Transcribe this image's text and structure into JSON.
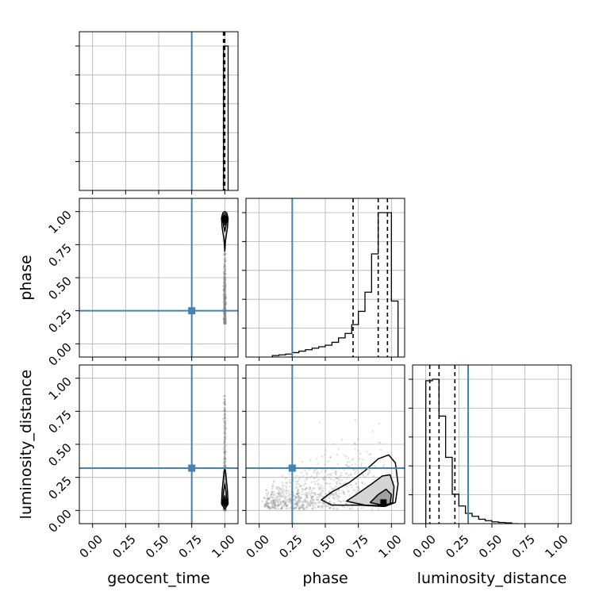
{
  "chart_data": {
    "type": "corner",
    "parameters": [
      "geocent_time",
      "phase",
      "luminosity_distance"
    ],
    "axis_labels": {
      "geocent_time": "geocent_time",
      "phase": "phase",
      "luminosity_distance": "luminosity_distance"
    },
    "tick_values": [
      0.0,
      0.25,
      0.5,
      0.75,
      1.0
    ],
    "tick_labels": [
      "0.00",
      "0.25",
      "0.50",
      "0.75",
      "1.00"
    ],
    "lim": [
      -0.1,
      1.1
    ],
    "grid": true,
    "truths": {
      "geocent_time": 0.75,
      "phase": 0.25,
      "luminosity_distance": 0.32
    },
    "truth_color": "#4682b4",
    "quantiles": {
      "geocent_time": [
        0.99,
        0.995,
        1.0
      ],
      "phase": [
        0.71,
        0.9,
        0.97
      ],
      "luminosity_distance": [
        0.03,
        0.1,
        0.22
      ]
    },
    "histograms": {
      "geocent_time": {
        "edges": [
          0.98,
          0.985,
          0.99,
          0.995,
          1.0,
          1.005,
          1.01,
          1.015,
          1.02,
          1.025,
          1.03
        ],
        "counts": [
          0,
          0,
          1.0,
          1.0,
          1.0,
          1.0,
          1.0,
          1.0,
          1.0,
          0
        ]
      },
      "phase": {
        "edges": [
          0.1,
          0.15,
          0.2,
          0.25,
          0.3,
          0.35,
          0.4,
          0.45,
          0.5,
          0.55,
          0.6,
          0.65,
          0.7,
          0.75,
          0.8,
          0.85,
          0.9,
          0.95,
          1.0,
          1.05
        ],
        "counts": [
          0.01,
          0.015,
          0.02,
          0.03,
          0.04,
          0.05,
          0.06,
          0.07,
          0.08,
          0.1,
          0.13,
          0.16,
          0.22,
          0.31,
          0.44,
          0.7,
          0.98,
          0.98,
          0.38
        ]
      },
      "luminosity_distance": {
        "edges": [
          0.0,
          0.05,
          0.1,
          0.15,
          0.2,
          0.25,
          0.3,
          0.35,
          0.4,
          0.45,
          0.5,
          0.55,
          0.6,
          0.65,
          0.7
        ],
        "counts": [
          0.97,
          0.98,
          0.73,
          0.45,
          0.2,
          0.12,
          0.07,
          0.05,
          0.03,
          0.02,
          0.012,
          0.008,
          0.005,
          0.0
        ]
      }
    },
    "scatter_2d": {
      "phase_vs_geocent_time": {
        "x_center": 1.0,
        "x_spread": 0.01,
        "y_range": [
          0.15,
          1.0
        ]
      },
      "luminosity_distance_vs_geocent_time": {
        "x_center": 1.0,
        "x_spread": 0.01,
        "y_range": [
          0.0,
          0.87
        ]
      },
      "luminosity_distance_vs_phase": {
        "x_range": [
          0.05,
          1.05
        ],
        "y_range": [
          0.0,
          0.7
        ]
      }
    },
    "density_peaks": {
      "phase_vs_geocent_time": {
        "x": 1.0,
        "y": 0.94
      },
      "luminosity_distance_vs_geocent_time": {
        "x": 1.0,
        "y": 0.06
      },
      "luminosity_distance_vs_phase": {
        "x": 0.94,
        "y": 0.06
      }
    }
  }
}
